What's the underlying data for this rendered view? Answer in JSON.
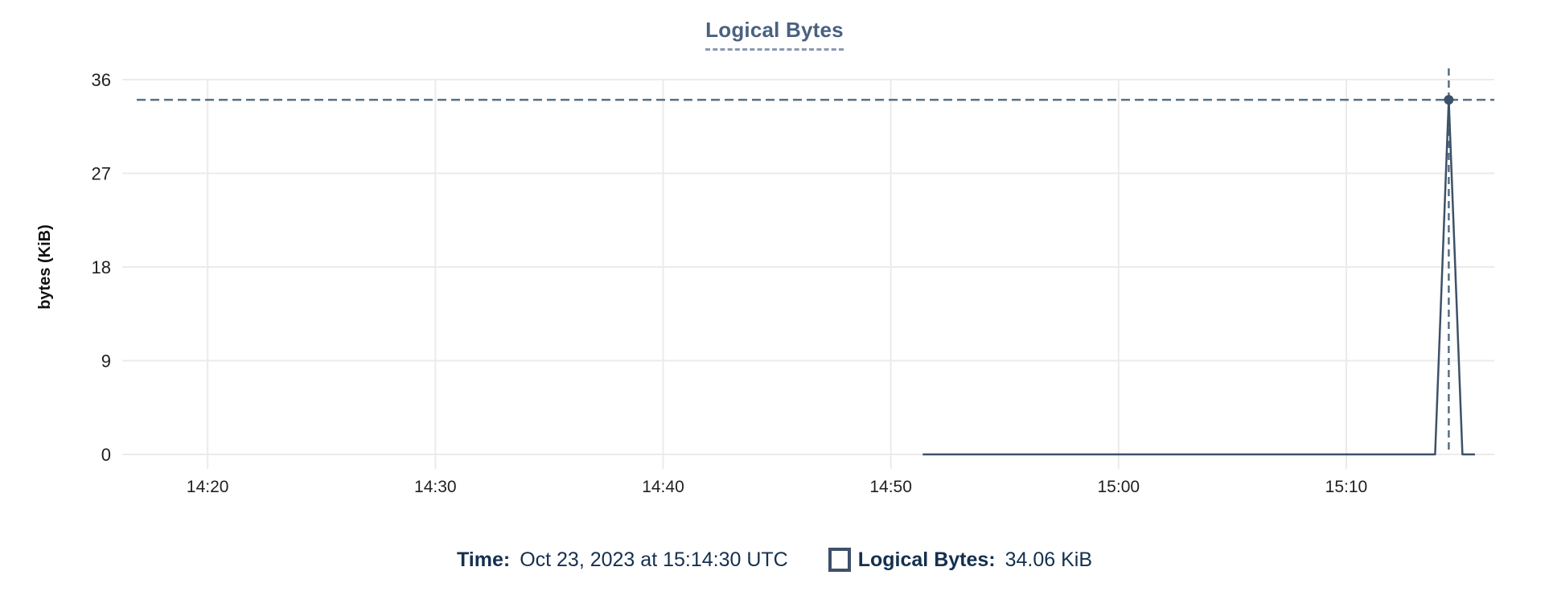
{
  "chart_data": {
    "type": "line",
    "title": "Logical Bytes",
    "xlabel": "",
    "ylabel": "bytes (KiB)",
    "yticks": [
      0,
      9,
      18,
      27,
      36
    ],
    "ylim": [
      0,
      36
    ],
    "xlim_minutes_after_1400": [
      16.25,
      76.5
    ],
    "xticks": [
      {
        "t": 20,
        "label": "14:20"
      },
      {
        "t": 30,
        "label": "14:30"
      },
      {
        "t": 40,
        "label": "14:40"
      },
      {
        "t": 50,
        "label": "14:50"
      },
      {
        "t": 60,
        "label": "15:00"
      },
      {
        "t": 70,
        "label": "15:10"
      }
    ],
    "grid": true,
    "legend_position": "bottom",
    "series": [
      {
        "name": "Logical Bytes",
        "points": [
          [
            51.4,
            0
          ],
          [
            73.9,
            0
          ],
          [
            74.5,
            34.06
          ],
          [
            75.1,
            0
          ],
          [
            75.65,
            0
          ]
        ]
      }
    ],
    "crosshair": {
      "t": 74.5,
      "value": 34.06,
      "time_label": "15:14:30"
    }
  },
  "readout": {
    "time_label": "Time:",
    "time_value": "Oct 23, 2023 at 15:14:30 UTC",
    "series_label": "Logical Bytes:",
    "series_value": "34.06 KiB"
  },
  "colors": {
    "series_line": "#3d5168",
    "marker_fill": "#3d5168",
    "crosshair_dash": "#567086",
    "title_text": "#4a6180",
    "title_underline": "#8a99b3",
    "readout_text": "#14304f",
    "swatch_border": "#3d5168",
    "gridline": "#ebebeb",
    "tick_label": "#1f1f1f",
    "axis_label": "#111111",
    "background": "#ffffff"
  },
  "icons": {
    "legend_swatch": "open-square"
  }
}
